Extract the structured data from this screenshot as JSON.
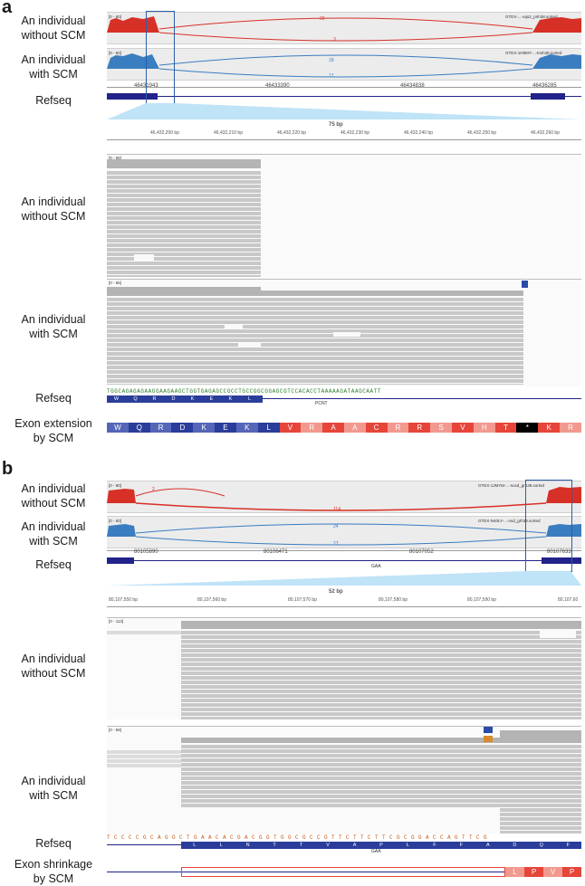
{
  "panel_a": {
    "letter": "a",
    "labels": {
      "without": "An individual\nwithout SCM",
      "with": "An individual\nwith SCM",
      "refseq": "Refseq",
      "without_zoom": "An individual\nwithout SCM",
      "with_zoom": "An individual\nwith SCM",
      "refseq_zoom": "Refseq",
      "exon": "Exon extension\nby SCM"
    },
    "sashimi": {
      "without_sample": "GTEX-...-oqs2_pnh38.sorted",
      "with_sample": "GTEX-1H9MY-...-tnsh38.sorted",
      "without_counts": [
        "29",
        "3"
      ],
      "with_counts": [
        "18",
        "17"
      ],
      "ranges": [
        "[0 - 60]",
        "[0 - 60]"
      ]
    },
    "coords": [
      "46431943",
      "46433390",
      "46434838",
      "46436285"
    ],
    "zoom": {
      "span": "75 bp",
      "ticks": [
        "46,432,200 bp",
        "46,432,210 bp",
        "46,432,220 bp",
        "46,432,230 bp",
        "46,432,240 bp",
        "46,432,250 bp",
        "46,432,260 bp"
      ],
      "range1": "[0 - 65]",
      "range2": "[0 - 65]",
      "sequence": "TGGCAGAGAGAAGGAAGAAGCTGGTGAGAGCCGCCTGCCGGCGGAGCGTCCACACCTAAAAAGATAAGCAATT",
      "gene": "PCNT",
      "aa": [
        "W",
        "Q",
        "R",
        "D",
        "K",
        "E",
        "K",
        "L"
      ]
    },
    "exon_extension": [
      "W",
      "Q",
      "R",
      "D",
      "K",
      "E",
      "K",
      "L",
      "V",
      "R",
      "A",
      "A",
      "C",
      "R",
      "R",
      "S",
      "V",
      "H",
      "T",
      "*",
      "K",
      "R"
    ]
  },
  "panel_b": {
    "letter": "b",
    "labels": {
      "without": "An individual\nwithout SCM",
      "with": "An individual\nwith SCM",
      "refseq": "Refseq",
      "without_zoom": "An individual\nwithout SCM",
      "with_zoom": "An individual\nwith SCM",
      "refseq_zoom": "Refseq",
      "exon": "Exon shrinkage\nby SCM"
    },
    "sashimi": {
      "without_sample": "GTEX-1JMYM-...-soxd_grh38.sorted",
      "with_sample": "GTEX-N40LY-...-nsd_grh38.sorted",
      "without_counts": [
        "2",
        "114"
      ],
      "with_counts": [
        "24",
        "27"
      ],
      "ranges": [
        "[0 - 80]",
        "[0 - 50]"
      ]
    },
    "coords": [
      "80105890",
      "80106471",
      "80107052",
      "80107633"
    ],
    "zoom": {
      "span": "52 bp",
      "ticks": [
        "80,107,550 bp",
        "80,107,560 bp",
        "80,107,570 bp",
        "80,107,580 bp",
        "80,107,590 bp",
        "80,107,60"
      ],
      "range1": "[0 - 113]",
      "range2": "[0 - 58]",
      "sequence": "TCCCCGCAGGCTGAACACGACGGTGGCGCCGTTCTTCTTCGCGGACCAGTTCG",
      "gene": "GAA",
      "aa": [
        "L",
        "L",
        "N",
        "T",
        "T",
        "V",
        "A",
        "P",
        "L",
        "F",
        "F",
        "A",
        "D",
        "Q",
        "F"
      ]
    },
    "exon_shrinkage": [
      "L",
      "P",
      "V",
      "P"
    ]
  },
  "colors": {
    "red": "#d73027",
    "blue": "#3a7dc0",
    "read": "#c8c8c8",
    "gene_blue": "#22228a",
    "aa_dark": "#2a3d9a",
    "aa_mid": "#5566b8",
    "aa_red": "#e6453a",
    "aa_pink": "#f2998f"
  }
}
